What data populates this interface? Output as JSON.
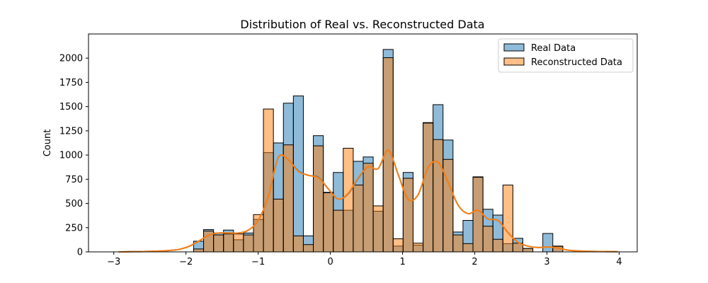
{
  "chart_data": {
    "type": "bar",
    "title": "Distribution of Real vs. Reconstructed Data",
    "xlabel": "",
    "ylabel": "Count",
    "xlim": [
      -3.35,
      4.25
    ],
    "ylim": [
      0,
      2250
    ],
    "xticks": [
      -3,
      -2,
      -1,
      0,
      1,
      2,
      3,
      4
    ],
    "yticks": [
      0,
      250,
      500,
      750,
      1000,
      1250,
      1500,
      1750,
      2000
    ],
    "grid": false,
    "legend_position": "top-right",
    "bin_start": -3.0,
    "bin_width": 0.1382,
    "colors": {
      "real": "#1f77b4",
      "reconstructed": "#ff7f0e",
      "edge": "#000000"
    },
    "series": [
      {
        "name": "Real Data",
        "values": [
          0,
          0,
          0,
          0,
          0,
          0,
          0,
          0,
          110,
          230,
          195,
          225,
          125,
          195,
          335,
          1025,
          1125,
          1535,
          1610,
          165,
          1200,
          615,
          820,
          430,
          935,
          980,
          420,
          2090,
          60,
          820,
          70,
          1335,
          1520,
          1155,
          205,
          325,
          775,
          440,
          380,
          85,
          140,
          35,
          0,
          190,
          55,
          0,
          0,
          0,
          0,
          0,
          0
        ],
        "kde": [
          0,
          2,
          3,
          5,
          8,
          14,
          25,
          55,
          110,
          170,
          195,
          195,
          195,
          225,
          330,
          575,
          975,
          950,
          835,
          790,
          770,
          650,
          545,
          600,
          760,
          880,
          860,
          1050,
          800,
          545,
          590,
          870,
          925,
          720,
          485,
          395,
          430,
          340,
          325,
          200,
          100,
          60,
          45,
          50,
          40,
          18,
          10,
          6,
          4,
          3,
          2
        ]
      },
      {
        "name": "Reconstructed Data",
        "values": [
          0,
          0,
          0,
          0,
          0,
          0,
          0,
          0,
          30,
          215,
          175,
          185,
          185,
          175,
          385,
          1475,
          545,
          1105,
          165,
          75,
          1095,
          610,
          430,
          1070,
          690,
          915,
          475,
          2005,
          135,
          760,
          90,
          1330,
          1160,
          955,
          175,
          85,
          770,
          265,
          130,
          690,
          90,
          35,
          0,
          0,
          60,
          0,
          0,
          0,
          0,
          0,
          0
        ],
        "kde": [
          0,
          2,
          3,
          5,
          8,
          14,
          25,
          55,
          110,
          170,
          195,
          195,
          195,
          225,
          330,
          575,
          975,
          950,
          830,
          790,
          765,
          650,
          545,
          605,
          765,
          880,
          860,
          1050,
          800,
          545,
          590,
          870,
          925,
          720,
          485,
          395,
          430,
          340,
          325,
          200,
          100,
          60,
          45,
          50,
          40,
          18,
          10,
          6,
          4,
          3,
          2
        ]
      }
    ]
  }
}
